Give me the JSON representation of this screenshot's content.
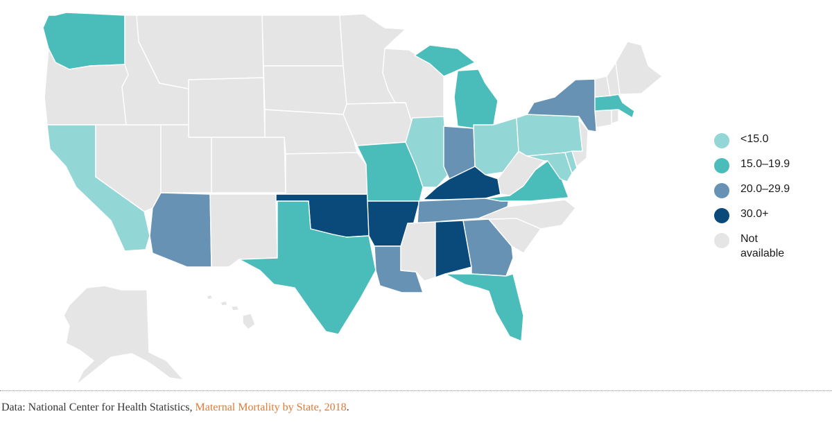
{
  "map": {
    "legend": [
      {
        "key": "lt15",
        "label": "<15.0",
        "color": "#93d6d6"
      },
      {
        "key": "15to19",
        "label": "15.0–19.9",
        "color": "#4abdbb"
      },
      {
        "key": "20to29",
        "label": "20.0–29.9",
        "color": "#6792b3"
      },
      {
        "key": "30plus",
        "label": "30.0+",
        "color": "#0a4a7b"
      },
      {
        "key": "na",
        "label": "Not\navailable",
        "color": "#e5e5e5"
      }
    ],
    "category_by_state": {
      "WA": "15to19",
      "OR": "na",
      "CA": "lt15",
      "NV": "na",
      "ID": "na",
      "MT": "na",
      "WY": "na",
      "UT": "na",
      "CO": "na",
      "AZ": "20to29",
      "NM": "na",
      "ND": "na",
      "SD": "na",
      "NE": "na",
      "KS": "na",
      "OK": "30plus",
      "TX": "15to19",
      "MN": "na",
      "IA": "na",
      "MO": "15to19",
      "AR": "30plus",
      "LA": "20to29",
      "WI": "na",
      "IL": "lt15",
      "MI": "15to19",
      "IN": "20to29",
      "OH": "lt15",
      "KY": "30plus",
      "TN": "20to29",
      "MS": "na",
      "AL": "30plus",
      "GA": "20to29",
      "FL": "15to19",
      "SC": "na",
      "NC": "na",
      "VA": "15to19",
      "WV": "na",
      "MD": "lt15",
      "DE": "lt15",
      "NJ": "na",
      "PA": "lt15",
      "NY": "20to29",
      "CT": "na",
      "RI": "na",
      "MA": "15to19",
      "VT": "na",
      "NH": "na",
      "ME": "na",
      "AK": "na",
      "HI": "na"
    }
  },
  "source": {
    "prefix": "Data: National Center for Health Statistics, ",
    "link": "Maternal Mortality by State, 2018",
    "suffix": "."
  }
}
